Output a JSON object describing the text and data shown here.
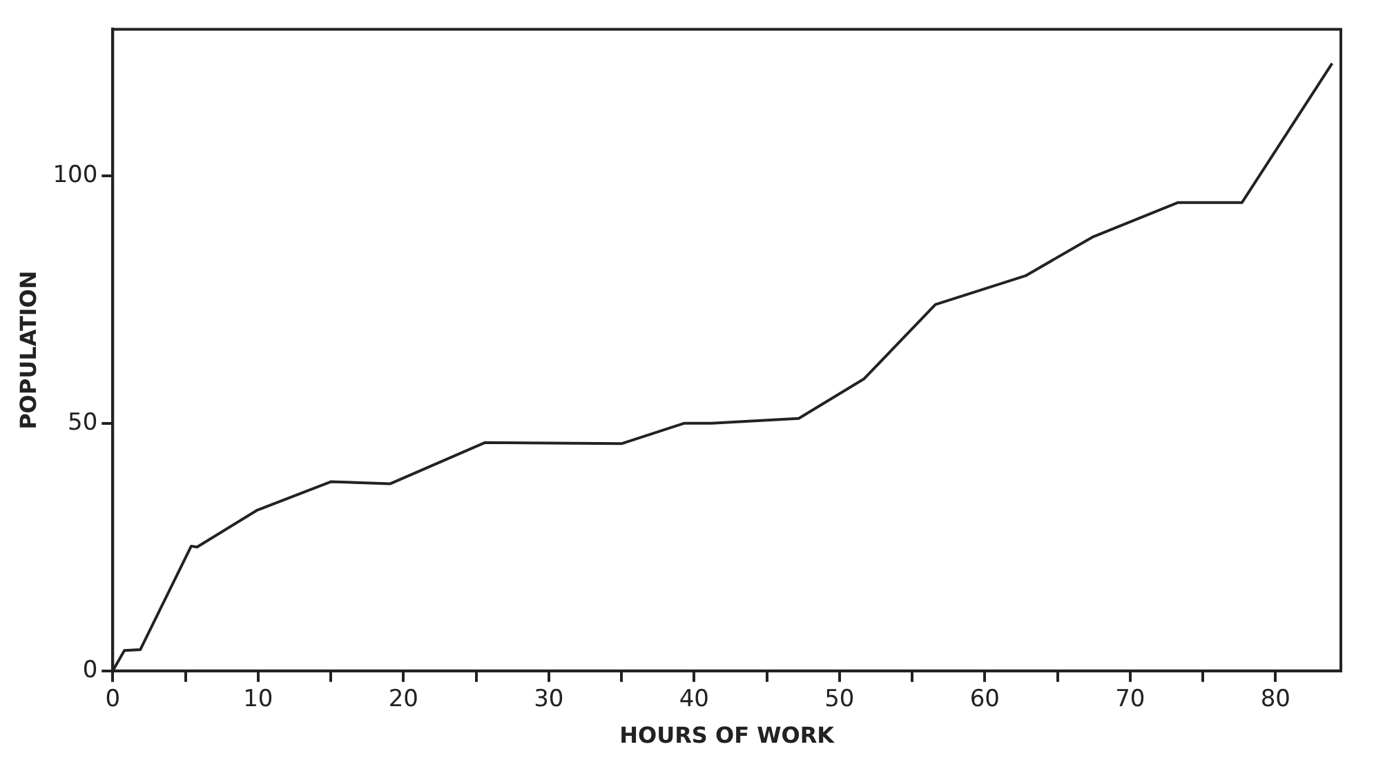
{
  "chart_data": {
    "type": "line",
    "xlabel": "HOURS OF WORK",
    "ylabel": "POPULATION",
    "x": [
      0,
      0.8,
      1.9,
      5.4,
      5.8,
      9.9,
      15,
      19.1,
      25.6,
      35,
      39.3,
      41.2,
      47.2,
      51.7,
      56.6,
      62.8,
      67.4,
      73.3,
      77.7,
      83.9
    ],
    "series": [
      {
        "color": "#222222",
        "values": [
          0,
          4.1,
          4.3,
          25.2,
          25,
          32.4,
          38.2,
          37.8,
          46.1,
          45.9,
          50,
          50,
          51,
          59,
          74,
          79.8,
          87.6,
          94.6,
          94.6,
          122.7
        ]
      }
    ],
    "xlim": [
      0,
      84.5
    ],
    "ylim": [
      0,
      129.6
    ],
    "xticks": [
      0,
      {
        "value": 5,
        "label": null
      },
      10,
      {
        "value": 15,
        "label": null
      },
      20,
      {
        "value": 25,
        "label": null
      },
      30,
      {
        "value": 35,
        "label": null
      },
      40,
      {
        "value": 45,
        "label": null
      },
      50,
      {
        "value": 55,
        "label": null
      },
      60,
      {
        "value": 65,
        "label": null
      },
      70,
      {
        "value": 75,
        "label": null
      },
      80
    ],
    "yticks": [
      0,
      50,
      100
    ],
    "grid": false,
    "legend": false,
    "marker": "none",
    "line_style": "solid"
  }
}
